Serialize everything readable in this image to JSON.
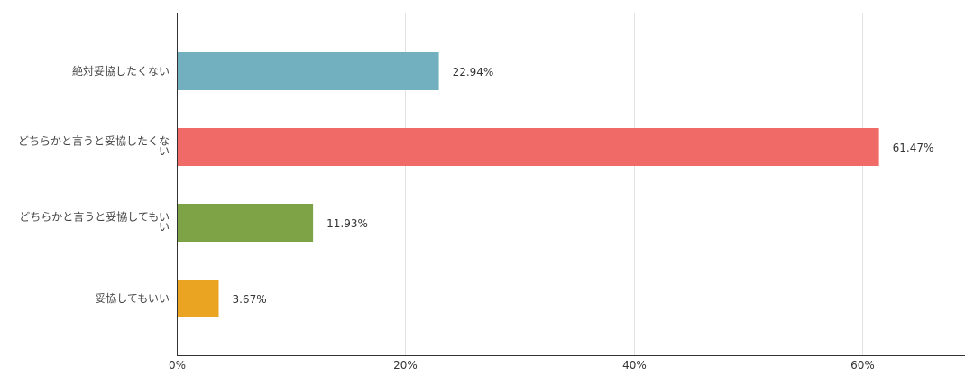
{
  "chart_data": {
    "type": "bar",
    "orientation": "horizontal",
    "categories": [
      [
        "絶対妥協したくない"
      ],
      [
        "どちらかと言うと妥協したくな",
        "い"
      ],
      [
        "どちらかと言うと妥協してもい",
        "い"
      ],
      [
        "妥協してもいい"
      ]
    ],
    "values": [
      22.94,
      61.47,
      11.93,
      3.67
    ],
    "value_labels": [
      "22.94%",
      "61.47%",
      "11.93%",
      "3.67%"
    ],
    "colors": [
      "#72b0bf",
      "#f06b67",
      "#7da346",
      "#eba322"
    ],
    "x_ticks": [
      {
        "value": 0,
        "label": "0%"
      },
      {
        "value": 20,
        "label": "20%"
      },
      {
        "value": 40,
        "label": "40%"
      },
      {
        "value": 60,
        "label": "60%"
      }
    ],
    "xlim": [
      0,
      69
    ],
    "grid": true,
    "title": "",
    "xlabel": "",
    "ylabel": ""
  }
}
